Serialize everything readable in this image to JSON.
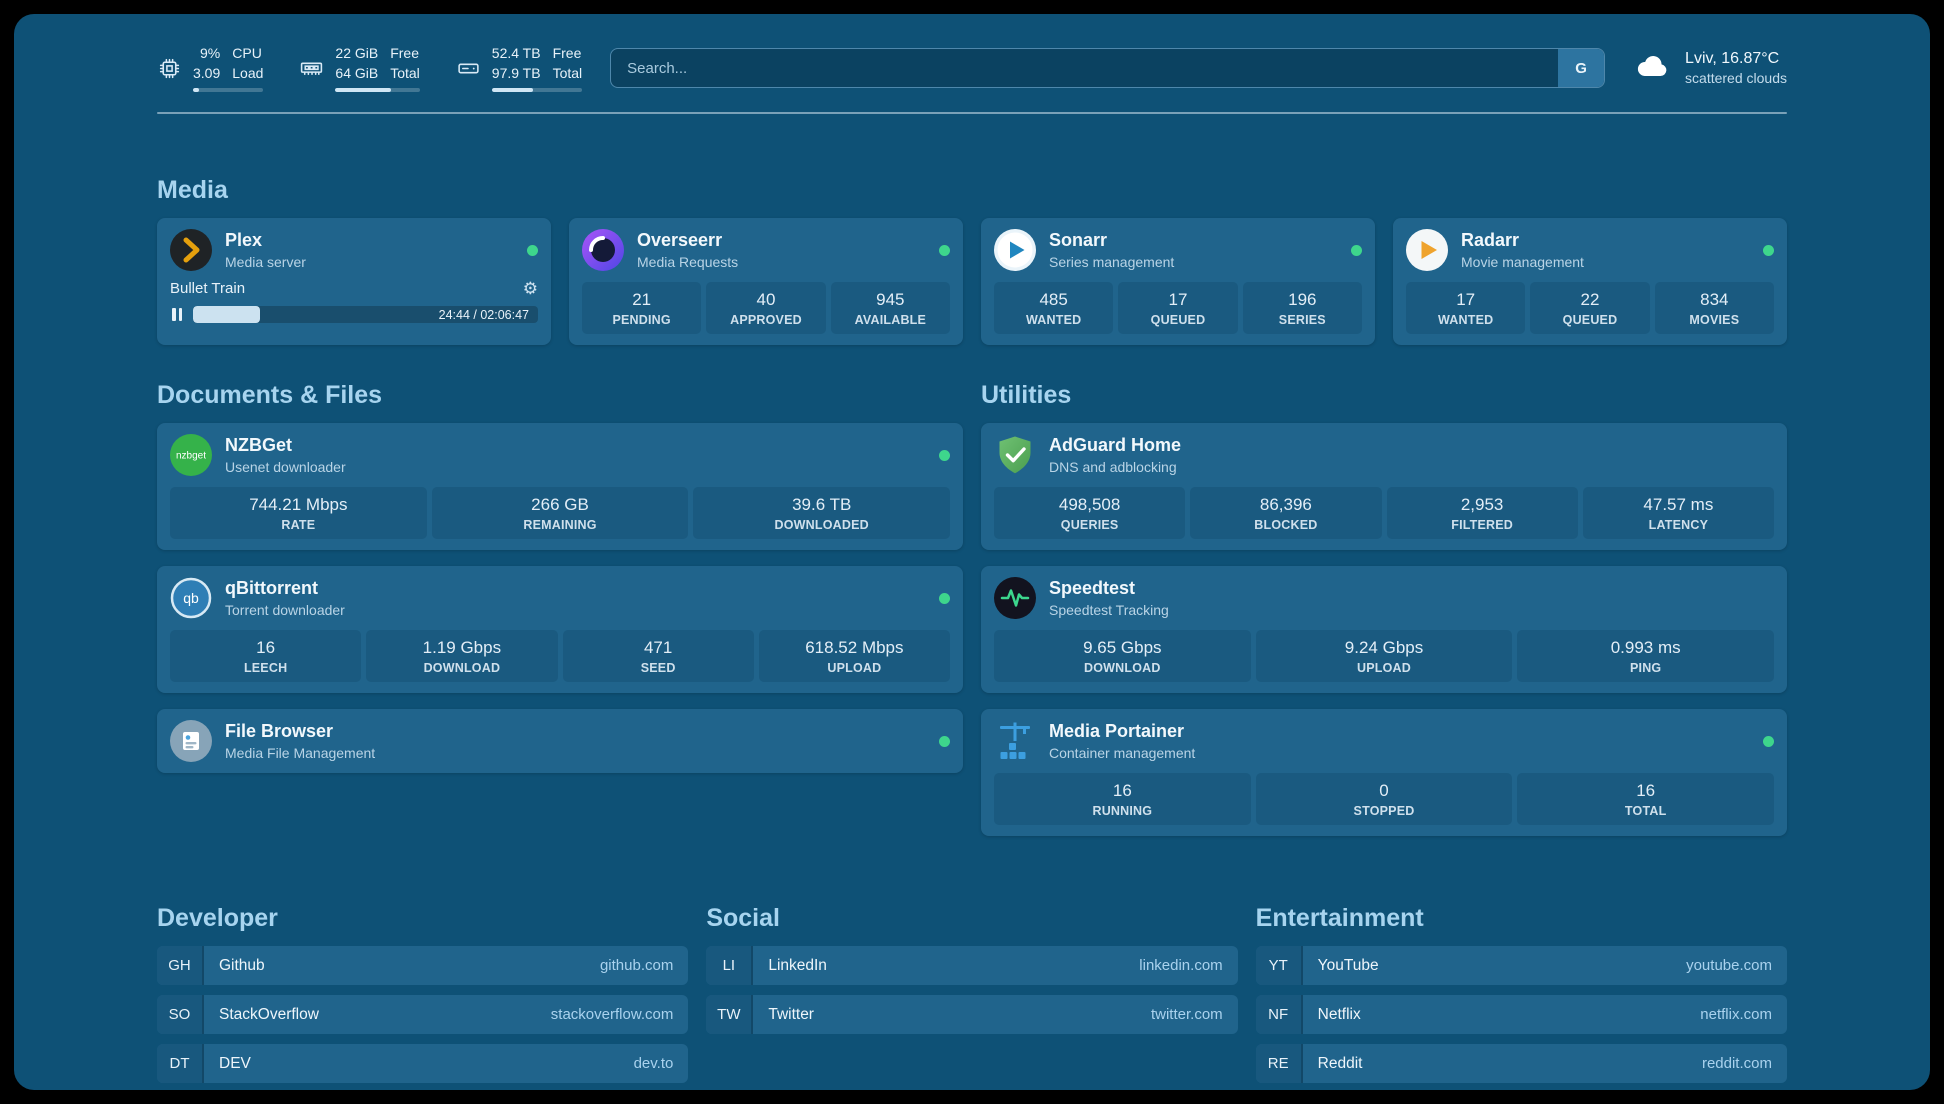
{
  "colors": {
    "background": "#0e5176",
    "card": "#20648c",
    "panel": "#1a5a80",
    "heading": "#a7d4ef",
    "status_online": "#3ed68c",
    "plex_accent": "#e5a00d"
  },
  "icons": {
    "cpu": "chip-outline",
    "memory": "ram-stick-outline",
    "disk": "hard-drive-outline",
    "search_engine": "letter-G",
    "weather": "cloud",
    "plex": "amber-chevron-dark-circle",
    "overseerr": "purple-swirl-circle",
    "sonarr": "blue-play-circle",
    "radarr": "amber-play-circle",
    "nzbget": "green-nzbget-circle",
    "adguard": "green-shield-check",
    "qbittorrent": "qb-circle",
    "speedtest": "green-waveform-dark-circle",
    "filebrowser": "file-circle",
    "portainer": "blue-crane-containers",
    "plex_settings": "gear",
    "plex_playback": "pause-bars",
    "status": "green-dot"
  },
  "topbar": {
    "cpu": {
      "value1": "9%",
      "value2": "3.09",
      "label1": "CPU",
      "label2": "Load",
      "bar_percent": 9
    },
    "memory": {
      "value1": "22 GiB",
      "value2": "64 GiB",
      "label1": "Free",
      "label2": "Total",
      "bar_percent": 66
    },
    "disk": {
      "value1": "52.4 TB",
      "value2": "97.9 TB",
      "label1": "Free",
      "label2": "Total",
      "bar_percent": 46
    },
    "search": {
      "placeholder": "Search...",
      "engine_label": "G"
    },
    "weather": {
      "location": "Lviv, 16.87°C",
      "condition": "scattered clouds"
    }
  },
  "media": {
    "heading": "Media",
    "plex": {
      "title": "Plex",
      "subtitle": "Media server",
      "now_playing": "Bullet Train",
      "time": "24:44 / 02:06:47",
      "progress_percent": 19.5
    },
    "overseerr": {
      "title": "Overseerr",
      "subtitle": "Media Requests",
      "stats": [
        {
          "value": "21",
          "label": "PENDING"
        },
        {
          "value": "40",
          "label": "APPROVED"
        },
        {
          "value": "945",
          "label": "AVAILABLE"
        }
      ]
    },
    "sonarr": {
      "title": "Sonarr",
      "subtitle": "Series management",
      "stats": [
        {
          "value": "485",
          "label": "WANTED"
        },
        {
          "value": "17",
          "label": "QUEUED"
        },
        {
          "value": "196",
          "label": "SERIES"
        }
      ]
    },
    "radarr": {
      "title": "Radarr",
      "subtitle": "Movie management",
      "stats": [
        {
          "value": "17",
          "label": "WANTED"
        },
        {
          "value": "22",
          "label": "QUEUED"
        },
        {
          "value": "834",
          "label": "MOVIES"
        }
      ]
    }
  },
  "documents": {
    "heading": "Documents & Files",
    "nzbget": {
      "title": "NZBGet",
      "subtitle": "Usenet downloader",
      "stats": [
        {
          "value": "744.21 Mbps",
          "label": "RATE"
        },
        {
          "value": "266 GB",
          "label": "REMAINING"
        },
        {
          "value": "39.6 TB",
          "label": "DOWNLOADED"
        }
      ]
    },
    "qbittorrent": {
      "title": "qBittorrent",
      "subtitle": "Torrent downloader",
      "stats": [
        {
          "value": "16",
          "label": "LEECH"
        },
        {
          "value": "1.19 Gbps",
          "label": "DOWNLOAD"
        },
        {
          "value": "471",
          "label": "SEED"
        },
        {
          "value": "618.52 Mbps",
          "label": "UPLOAD"
        }
      ]
    },
    "filebrowser": {
      "title": "File Browser",
      "subtitle": "Media File Management"
    }
  },
  "utilities": {
    "heading": "Utilities",
    "adguard": {
      "title": "AdGuard Home",
      "subtitle": "DNS and adblocking",
      "stats": [
        {
          "value": "498,508",
          "label": "QUERIES"
        },
        {
          "value": "86,396",
          "label": "BLOCKED"
        },
        {
          "value": "2,953",
          "label": "FILTERED"
        },
        {
          "value": "47.57 ms",
          "label": "LATENCY"
        }
      ]
    },
    "speedtest": {
      "title": "Speedtest",
      "subtitle": "Speedtest Tracking",
      "stats": [
        {
          "value": "9.65 Gbps",
          "label": "DOWNLOAD"
        },
        {
          "value": "9.24 Gbps",
          "label": "UPLOAD"
        },
        {
          "value": "0.993 ms",
          "label": "PING"
        }
      ]
    },
    "portainer": {
      "title": "Media Portainer",
      "subtitle": "Container management",
      "stats": [
        {
          "value": "16",
          "label": "RUNNING"
        },
        {
          "value": "0",
          "label": "STOPPED"
        },
        {
          "value": "16",
          "label": "TOTAL"
        }
      ]
    }
  },
  "bookmarks": {
    "developer": {
      "heading": "Developer",
      "items": [
        {
          "abbr": "GH",
          "name": "Github",
          "url": "github.com"
        },
        {
          "abbr": "SO",
          "name": "StackOverflow",
          "url": "stackoverflow.com"
        },
        {
          "abbr": "DT",
          "name": "DEV",
          "url": "dev.to"
        }
      ]
    },
    "social": {
      "heading": "Social",
      "items": [
        {
          "abbr": "LI",
          "name": "LinkedIn",
          "url": "linkedin.com"
        },
        {
          "abbr": "TW",
          "name": "Twitter",
          "url": "twitter.com"
        }
      ]
    },
    "entertainment": {
      "heading": "Entertainment",
      "items": [
        {
          "abbr": "YT",
          "name": "YouTube",
          "url": "youtube.com"
        },
        {
          "abbr": "NF",
          "name": "Netflix",
          "url": "netflix.com"
        },
        {
          "abbr": "RE",
          "name": "Reddit",
          "url": "reddit.com"
        }
      ]
    }
  }
}
